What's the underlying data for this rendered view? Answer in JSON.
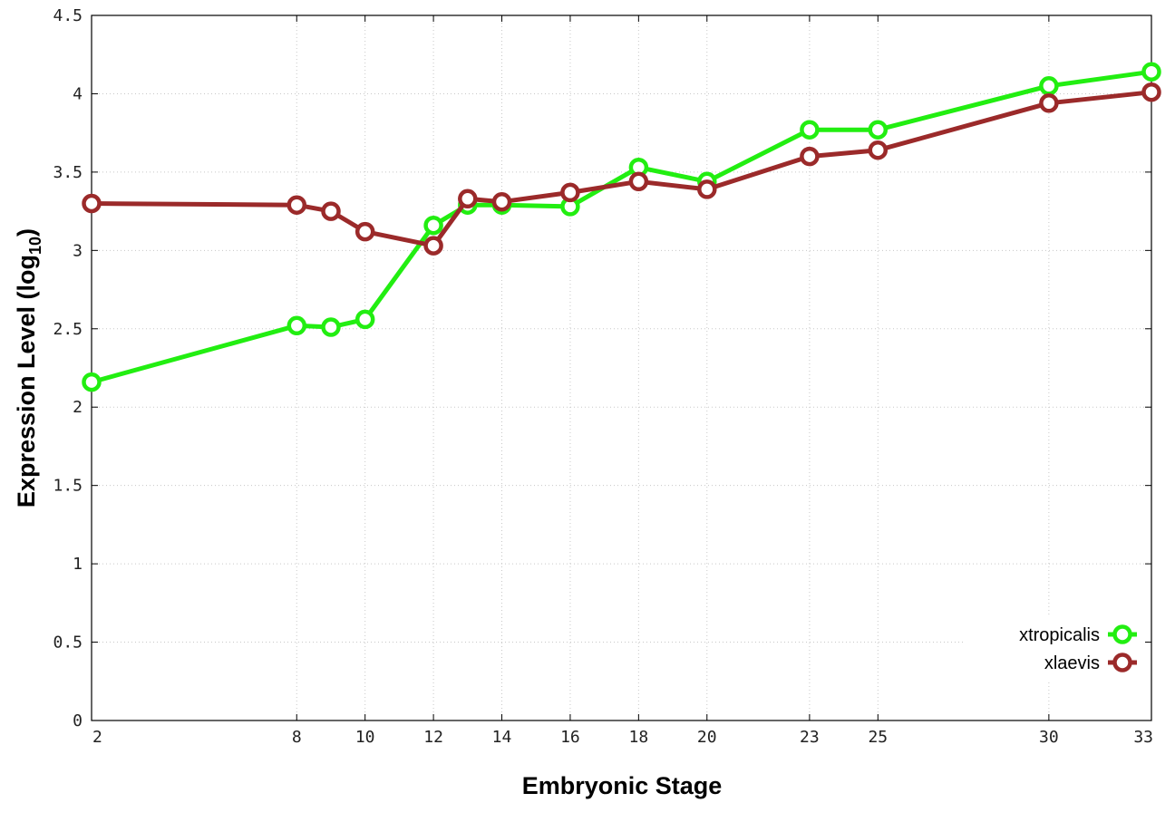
{
  "chart_data": {
    "type": "line",
    "xlabel": "Embryonic Stage",
    "ylabel": "Expression Level (log",
    "ylabel_sub": "10",
    "ylabel_close": ")",
    "xlim": [
      2,
      33
    ],
    "ylim": [
      0,
      4.5
    ],
    "x_ticks": [
      2,
      8,
      10,
      12,
      14,
      16,
      18,
      20,
      23,
      25,
      30,
      33
    ],
    "y_ticks": [
      0,
      0.5,
      1,
      1.5,
      2,
      2.5,
      3,
      3.5,
      4,
      4.5
    ],
    "y_tick_labels": [
      "0",
      "0.5",
      "1",
      "1.5",
      "2",
      "2.5",
      "3",
      "3.5",
      "4",
      "4.5"
    ],
    "grid": true,
    "legend_position": "bottom-right",
    "series": [
      {
        "name": "xtropicalis",
        "color": "#22ee11",
        "x": [
          2,
          8,
          9,
          10,
          12,
          13,
          14,
          16,
          18,
          20,
          23,
          25,
          30,
          33
        ],
        "values": [
          2.16,
          2.52,
          2.51,
          2.56,
          3.16,
          3.29,
          3.29,
          3.28,
          3.53,
          3.44,
          3.77,
          3.77,
          4.05,
          4.14
        ]
      },
      {
        "name": "xlaevis",
        "color": "#9b2a2a",
        "x": [
          2,
          8,
          9,
          10,
          12,
          13,
          14,
          16,
          18,
          20,
          23,
          25,
          30,
          33
        ],
        "values": [
          3.3,
          3.29,
          3.25,
          3.12,
          3.03,
          3.33,
          3.31,
          3.37,
          3.44,
          3.39,
          3.6,
          3.64,
          3.94,
          4.01
        ]
      }
    ]
  }
}
